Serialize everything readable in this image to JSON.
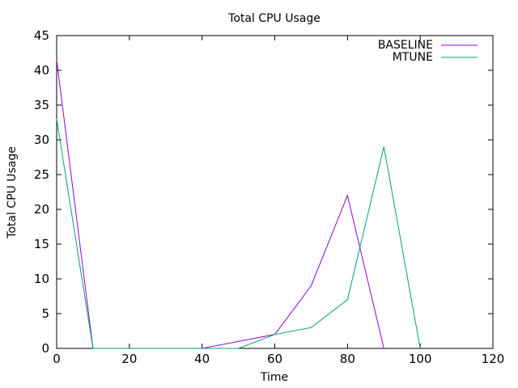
{
  "chart_data": {
    "type": "line",
    "title": "Total CPU Usage",
    "xlabel": "Time",
    "ylabel": "Total CPU Usage",
    "xlim": [
      0,
      120
    ],
    "ylim": [
      0,
      45
    ],
    "xticks": [
      0,
      20,
      40,
      60,
      80,
      100,
      120
    ],
    "yticks": [
      0,
      5,
      10,
      15,
      20,
      25,
      30,
      35,
      40,
      45
    ],
    "grid": false,
    "legend": "top-right",
    "series": [
      {
        "name": "BASELINE",
        "color": "#9400d3",
        "x": [
          0,
          10,
          20,
          30,
          40,
          50,
          60,
          70,
          80,
          90
        ],
        "y": [
          41.5,
          0,
          0,
          0,
          0,
          1,
          2,
          9,
          22,
          0
        ]
      },
      {
        "name": "MTUNE",
        "color": "#009e73",
        "x": [
          0,
          10,
          20,
          30,
          40,
          50,
          60,
          70,
          80,
          90,
          100
        ],
        "y": [
          33,
          0,
          0,
          0,
          0,
          0,
          2,
          3,
          7,
          29,
          0
        ]
      }
    ]
  }
}
